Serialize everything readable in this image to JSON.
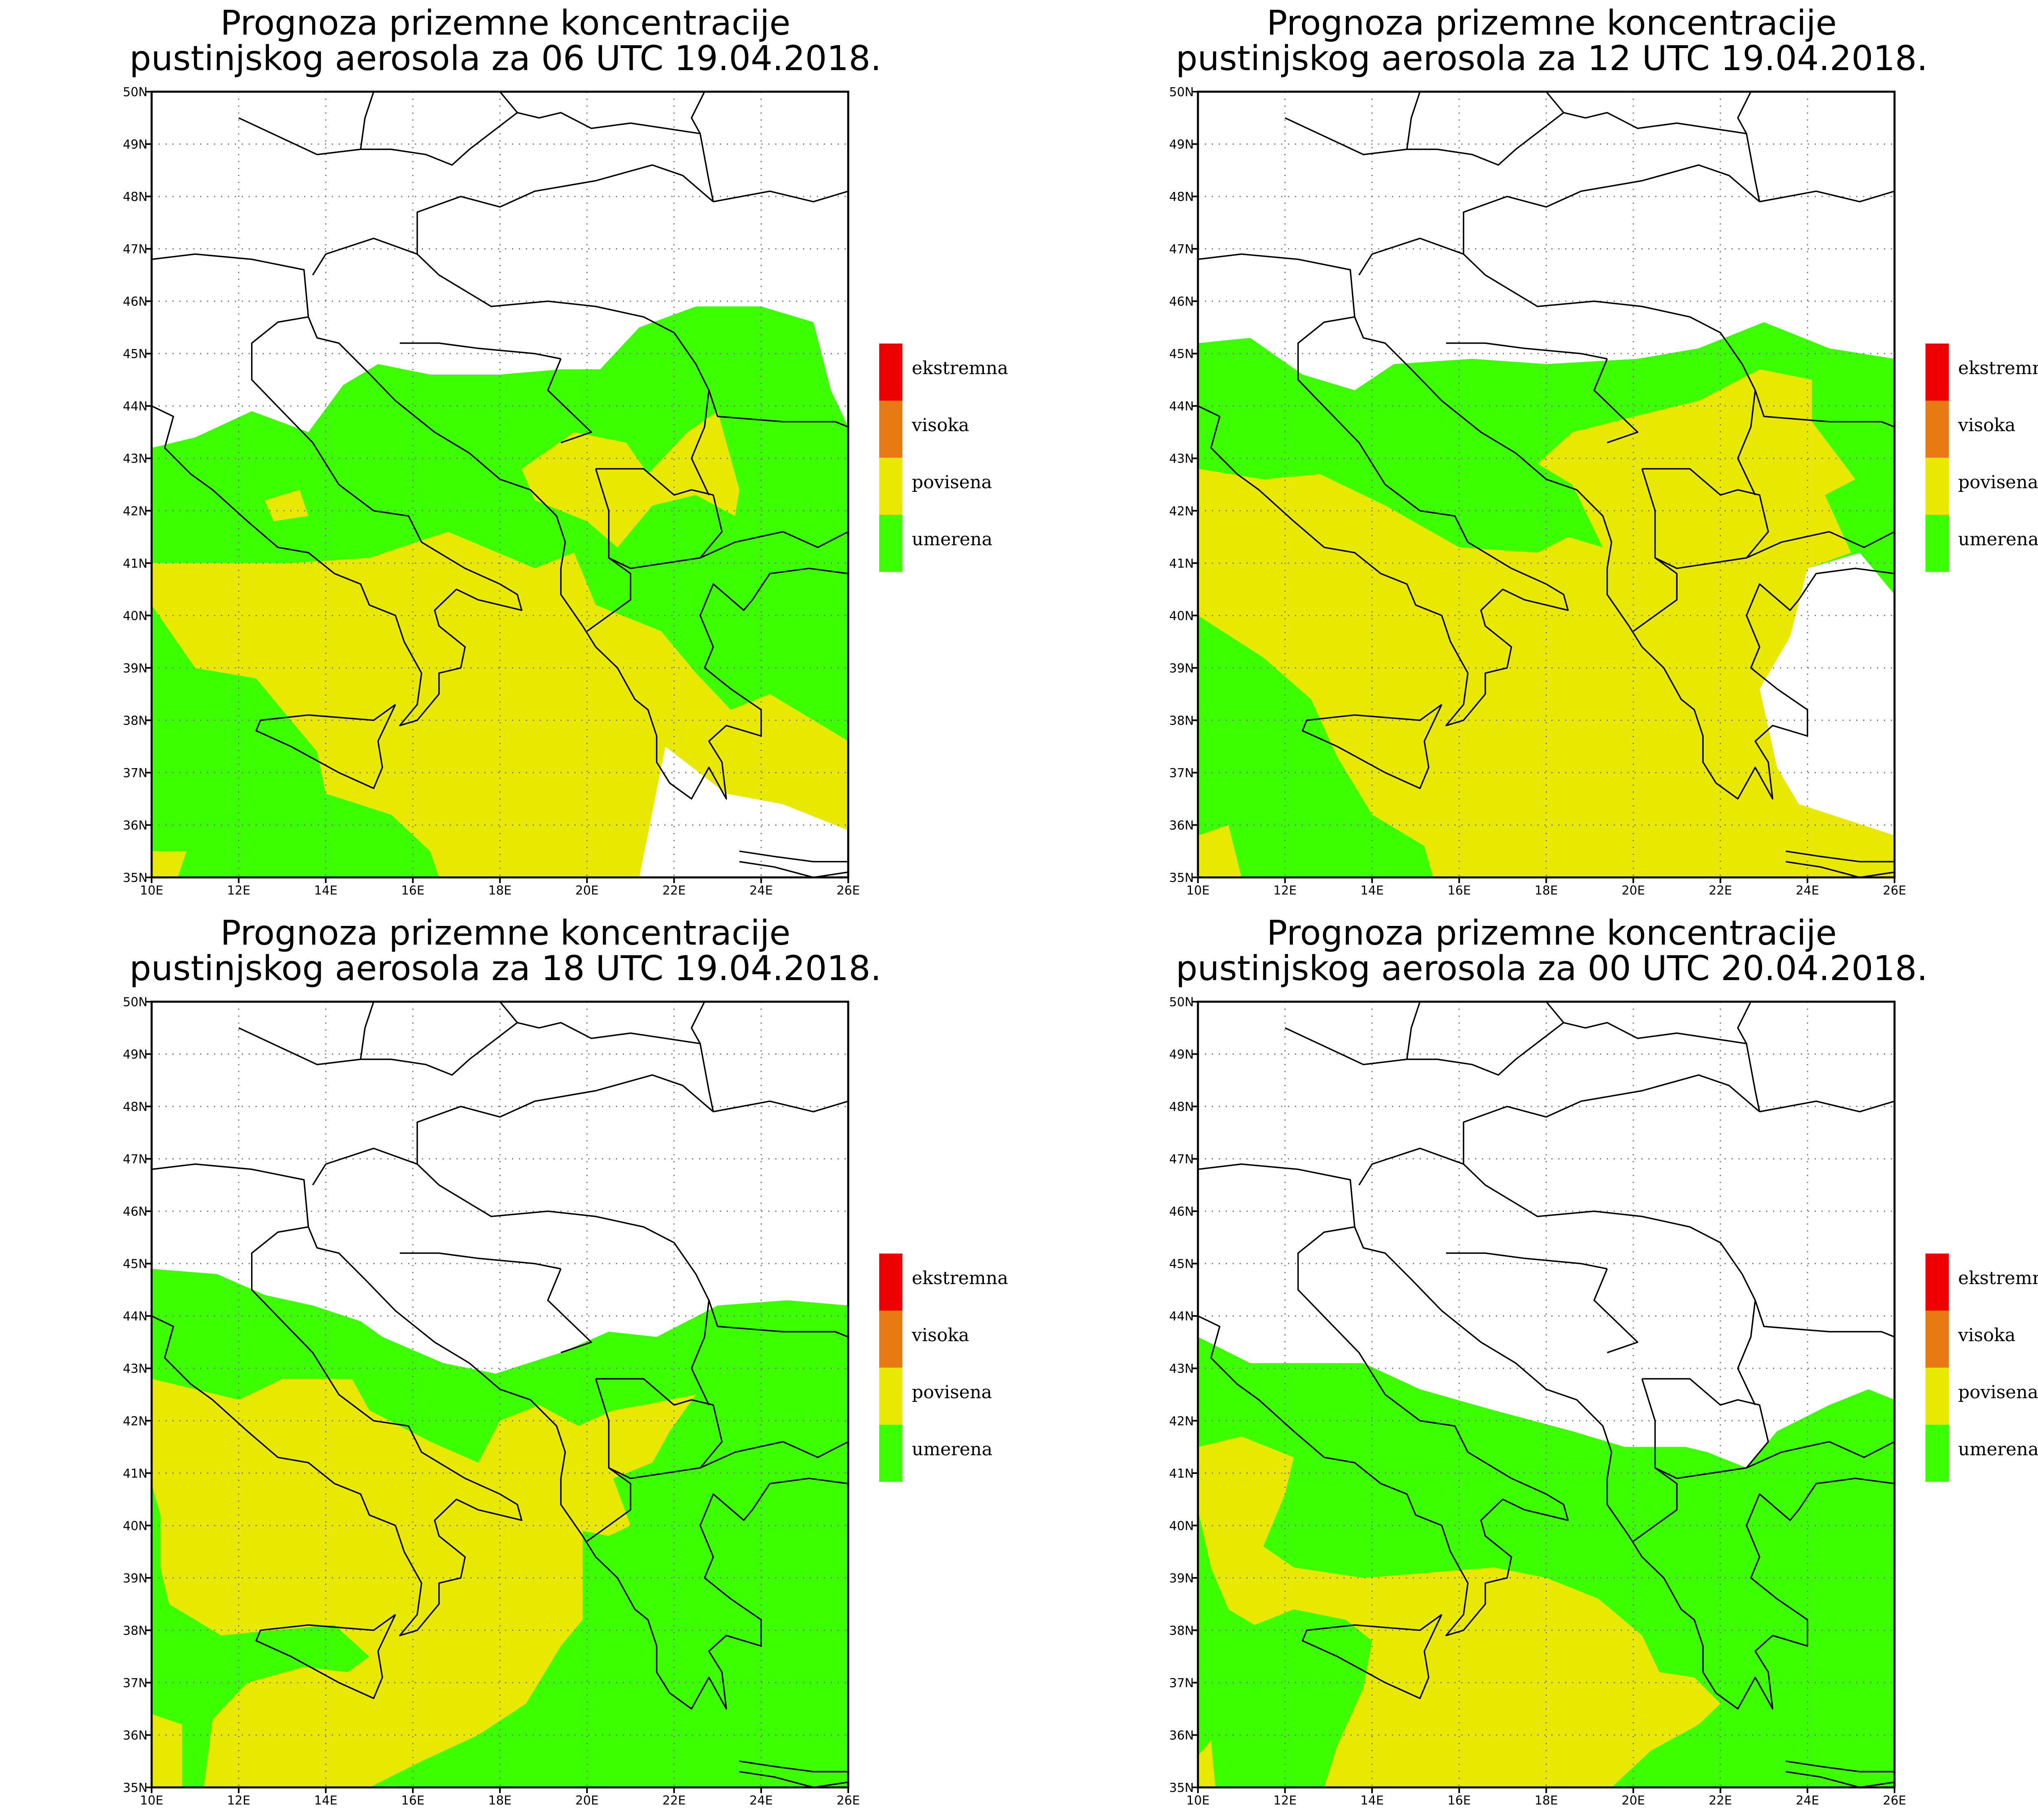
{
  "panels": [
    {
      "title_line1": "Prognoza prizemne koncentracije",
      "title_line2": "pustinjskog aerosola za 06 UTC 19.04.2018.",
      "green_regions": [
        [
          [
            10.0,
            43.2
          ],
          [
            11.0,
            43.4
          ],
          [
            12.3,
            43.9
          ],
          [
            13.6,
            43.5
          ],
          [
            14.4,
            44.4
          ],
          [
            15.2,
            44.8
          ],
          [
            16.4,
            44.6
          ],
          [
            18.0,
            44.6
          ],
          [
            19.4,
            44.7
          ],
          [
            20.3,
            44.7
          ],
          [
            21.2,
            45.5
          ],
          [
            22.5,
            45.9
          ],
          [
            24.0,
            45.9
          ],
          [
            25.2,
            45.6
          ],
          [
            25.6,
            44.3
          ],
          [
            26.0,
            43.6
          ],
          [
            26.0,
            37.6
          ],
          [
            24.2,
            38.5
          ],
          [
            23.3,
            38.2
          ],
          [
            22.5,
            38.9
          ],
          [
            21.7,
            39.7
          ],
          [
            20.2,
            40.2
          ],
          [
            19.7,
            41.2
          ],
          [
            18.8,
            40.9
          ],
          [
            16.8,
            41.6
          ],
          [
            15.0,
            41.1
          ],
          [
            13.2,
            41.0
          ],
          [
            10.0,
            41.0
          ]
        ],
        [
          [
            10.0,
            40.2
          ],
          [
            11.0,
            39.0
          ],
          [
            12.4,
            38.8
          ],
          [
            13.8,
            37.4
          ],
          [
            14.0,
            36.6
          ],
          [
            15.5,
            36.2
          ],
          [
            16.4,
            35.5
          ],
          [
            16.6,
            35.0
          ],
          [
            10.0,
            35.0
          ]
        ],
        [
          [
            21.8,
            37.5
          ],
          [
            23.2,
            36.6
          ],
          [
            24.5,
            36.4
          ],
          [
            26.0,
            35.9
          ],
          [
            26.0,
            37.6
          ],
          [
            24.2,
            38.5
          ],
          [
            23.3,
            38.2
          ],
          [
            22.6,
            37.9
          ]
        ]
      ],
      "yellow_regions": [
        [
          [
            10.0,
            41.0
          ],
          [
            13.2,
            41.0
          ],
          [
            15.0,
            41.1
          ],
          [
            16.8,
            41.6
          ],
          [
            18.8,
            40.9
          ],
          [
            19.7,
            41.2
          ],
          [
            20.2,
            40.2
          ],
          [
            21.7,
            39.7
          ],
          [
            22.5,
            38.9
          ],
          [
            23.3,
            38.2
          ],
          [
            24.2,
            38.5
          ],
          [
            26.0,
            37.6
          ],
          [
            26.0,
            35.9
          ],
          [
            24.5,
            36.4
          ],
          [
            23.2,
            36.6
          ],
          [
            21.8,
            37.5
          ],
          [
            21.2,
            35.0
          ],
          [
            16.6,
            35.0
          ],
          [
            16.4,
            35.5
          ],
          [
            15.5,
            36.2
          ],
          [
            14.0,
            36.6
          ],
          [
            13.8,
            37.4
          ],
          [
            12.4,
            38.8
          ],
          [
            11.0,
            39.0
          ],
          [
            10.0,
            40.2
          ]
        ],
        [
          [
            18.5,
            42.8
          ],
          [
            19.7,
            43.5
          ],
          [
            20.9,
            43.3
          ],
          [
            21.4,
            42.7
          ],
          [
            22.3,
            43.5
          ],
          [
            23.0,
            43.9
          ],
          [
            23.5,
            42.4
          ],
          [
            23.4,
            41.9
          ],
          [
            22.5,
            42.3
          ],
          [
            21.5,
            42.1
          ],
          [
            20.7,
            41.3
          ],
          [
            20.0,
            41.8
          ],
          [
            18.8,
            42.2
          ]
        ],
        [
          [
            10.0,
            35.5
          ],
          [
            10.8,
            35.5
          ],
          [
            10.6,
            35.0
          ],
          [
            10.0,
            35.0
          ]
        ],
        [
          [
            12.6,
            42.2
          ],
          [
            13.4,
            42.4
          ],
          [
            13.6,
            41.9
          ],
          [
            12.8,
            41.8
          ]
        ]
      ]
    },
    {
      "title_line1": "Prognoza prizemne koncentracije",
      "title_line2": "pustinjskog aerosola za 12 UTC 19.04.2018.",
      "green_regions": [
        [
          [
            10.0,
            45.2
          ],
          [
            11.2,
            45.3
          ],
          [
            12.4,
            44.6
          ],
          [
            13.6,
            44.3
          ],
          [
            14.5,
            44.8
          ],
          [
            16.3,
            44.9
          ],
          [
            18.0,
            44.8
          ],
          [
            20.1,
            44.9
          ],
          [
            21.5,
            45.1
          ],
          [
            23.0,
            45.6
          ],
          [
            24.5,
            45.1
          ],
          [
            26.0,
            44.9
          ],
          [
            26.0,
            40.4
          ],
          [
            25.2,
            41.2
          ],
          [
            24.0,
            40.9
          ],
          [
            23.6,
            39.6
          ],
          [
            22.9,
            38.6
          ],
          [
            23.3,
            37.1
          ],
          [
            23.8,
            36.4
          ],
          [
            26.0,
            35.8
          ],
          [
            26.0,
            35.0
          ],
          [
            10.0,
            35.0
          ]
        ]
      ],
      "yellow_regions": [
        [
          [
            10.0,
            42.8
          ],
          [
            11.5,
            42.6
          ],
          [
            12.8,
            42.7
          ],
          [
            14.3,
            42.1
          ],
          [
            16.0,
            41.3
          ],
          [
            17.8,
            41.2
          ],
          [
            18.5,
            41.5
          ],
          [
            19.3,
            41.3
          ],
          [
            18.6,
            42.5
          ],
          [
            17.8,
            42.9
          ],
          [
            18.6,
            43.5
          ],
          [
            20.5,
            43.9
          ],
          [
            21.5,
            44.1
          ],
          [
            22.9,
            44.7
          ],
          [
            24.1,
            44.5
          ],
          [
            24.1,
            43.7
          ],
          [
            25.1,
            42.6
          ],
          [
            24.4,
            42.3
          ],
          [
            25.0,
            41.2
          ],
          [
            24.0,
            40.9
          ],
          [
            23.6,
            39.6
          ],
          [
            22.9,
            38.6
          ],
          [
            23.3,
            37.1
          ],
          [
            23.8,
            36.4
          ],
          [
            26.0,
            35.8
          ],
          [
            26.0,
            35.0
          ],
          [
            15.4,
            35.0
          ],
          [
            15.2,
            35.6
          ],
          [
            14.0,
            36.2
          ],
          [
            13.2,
            37.3
          ],
          [
            12.6,
            38.4
          ],
          [
            11.5,
            39.2
          ],
          [
            10.0,
            40.0
          ]
        ],
        [
          [
            10.0,
            35.8
          ],
          [
            10.7,
            36.0
          ],
          [
            11.0,
            35.0
          ],
          [
            10.0,
            35.0
          ]
        ]
      ]
    },
    {
      "title_line1": "Prognoza prizemne koncentracije",
      "title_line2": "pustinjskog aerosola za 18 UTC 19.04.2018.",
      "green_regions": [
        [
          [
            10.0,
            44.9
          ],
          [
            11.5,
            44.8
          ],
          [
            12.6,
            44.4
          ],
          [
            13.7,
            44.2
          ],
          [
            14.8,
            43.9
          ],
          [
            15.3,
            43.6
          ],
          [
            16.7,
            43.1
          ],
          [
            17.9,
            42.9
          ],
          [
            19.4,
            43.3
          ],
          [
            20.5,
            43.7
          ],
          [
            21.6,
            43.6
          ],
          [
            23.0,
            44.2
          ],
          [
            24.6,
            44.3
          ],
          [
            26.0,
            44.2
          ],
          [
            26.0,
            35.0
          ],
          [
            10.0,
            35.0
          ]
        ]
      ],
      "yellow_regions": [
        [
          [
            10.0,
            42.8
          ],
          [
            11.0,
            42.6
          ],
          [
            12.0,
            42.4
          ],
          [
            13.0,
            42.8
          ],
          [
            14.6,
            42.8
          ],
          [
            15.0,
            42.2
          ],
          [
            16.4,
            41.6
          ],
          [
            17.5,
            41.2
          ],
          [
            18.0,
            42.0
          ],
          [
            18.9,
            42.3
          ],
          [
            19.8,
            41.9
          ],
          [
            20.6,
            42.2
          ],
          [
            21.3,
            42.3
          ],
          [
            22.5,
            42.5
          ],
          [
            21.9,
            41.8
          ],
          [
            21.5,
            41.2
          ],
          [
            20.6,
            40.9
          ],
          [
            21.0,
            40.0
          ],
          [
            20.5,
            39.8
          ],
          [
            19.9,
            39.9
          ],
          [
            19.9,
            38.2
          ],
          [
            19.4,
            37.7
          ],
          [
            18.6,
            36.6
          ],
          [
            17.5,
            36.0
          ],
          [
            16.2,
            35.5
          ],
          [
            15.0,
            35.0
          ],
          [
            11.2,
            35.0
          ],
          [
            11.4,
            36.3
          ],
          [
            12.2,
            37.0
          ],
          [
            13.5,
            37.3
          ],
          [
            14.5,
            37.2
          ],
          [
            15.0,
            37.5
          ],
          [
            14.2,
            38.1
          ],
          [
            12.8,
            38.0
          ],
          [
            11.6,
            37.9
          ],
          [
            10.4,
            38.5
          ],
          [
            10.2,
            39.2
          ],
          [
            10.2,
            40.2
          ],
          [
            10.0,
            40.8
          ]
        ],
        [
          [
            10.0,
            36.4
          ],
          [
            10.7,
            36.2
          ],
          [
            10.7,
            35.0
          ],
          [
            10.0,
            35.0
          ]
        ]
      ]
    },
    {
      "title_line1": "Prognoza prizemne koncentracije",
      "title_line2": "pustinjskog aerosola za 00 UTC 20.04.2018.",
      "green_regions": [
        [
          [
            10.0,
            43.6
          ],
          [
            11.2,
            43.1
          ],
          [
            12.4,
            43.1
          ],
          [
            13.8,
            43.1
          ],
          [
            15.1,
            42.6
          ],
          [
            16.8,
            42.2
          ],
          [
            18.6,
            41.8
          ],
          [
            19.8,
            41.5
          ],
          [
            21.2,
            41.5
          ],
          [
            21.7,
            41.4
          ],
          [
            22.6,
            41.1
          ],
          [
            23.3,
            41.8
          ],
          [
            24.5,
            42.3
          ],
          [
            25.4,
            42.6
          ],
          [
            26.0,
            42.4
          ],
          [
            26.0,
            35.0
          ],
          [
            10.0,
            35.0
          ]
        ]
      ],
      "yellow_regions": [
        [
          [
            10.0,
            41.5
          ],
          [
            11.0,
            41.7
          ],
          [
            12.2,
            41.3
          ],
          [
            12.0,
            40.6
          ],
          [
            11.5,
            39.6
          ],
          [
            12.2,
            39.2
          ],
          [
            13.8,
            39.0
          ],
          [
            15.3,
            39.1
          ],
          [
            16.8,
            39.2
          ],
          [
            18.0,
            39.0
          ],
          [
            19.2,
            38.6
          ],
          [
            20.2,
            37.9
          ],
          [
            20.6,
            37.2
          ],
          [
            21.4,
            37.1
          ],
          [
            22.0,
            36.6
          ],
          [
            21.5,
            36.2
          ],
          [
            20.4,
            35.7
          ],
          [
            19.5,
            35.0
          ],
          [
            12.9,
            35.0
          ],
          [
            13.2,
            35.8
          ],
          [
            13.8,
            36.9
          ],
          [
            14.0,
            37.8
          ],
          [
            13.4,
            38.2
          ],
          [
            12.2,
            38.4
          ],
          [
            11.3,
            38.1
          ],
          [
            10.7,
            38.4
          ],
          [
            10.3,
            39.2
          ],
          [
            10.0,
            40.3
          ]
        ],
        [
          [
            10.0,
            35.6
          ],
          [
            10.3,
            35.9
          ],
          [
            10.4,
            35.0
          ],
          [
            10.0,
            35.0
          ]
        ]
      ]
    }
  ],
  "axes": {
    "x_ticks": [
      "10E",
      "12E",
      "14E",
      "16E",
      "18E",
      "20E",
      "22E",
      "24E",
      "26E"
    ],
    "y_ticks": [
      "35N",
      "36N",
      "37N",
      "38N",
      "39N",
      "40N",
      "41N",
      "42N",
      "43N",
      "44N",
      "45N",
      "46N",
      "47N",
      "48N",
      "49N",
      "50N"
    ],
    "lon_range": [
      10,
      26
    ],
    "lat_range": [
      35,
      50
    ]
  },
  "legend": [
    {
      "label": "ekstremna",
      "color": "#ee0000"
    },
    {
      "label": "visoka",
      "color": "#e87a14"
    },
    {
      "label": "povisena",
      "color": "#e8e800"
    },
    {
      "label": "umerena",
      "color": "#3cff00"
    }
  ],
  "colors": {
    "umerena": "#3cff00",
    "povisena": "#e8e800",
    "background": "#ffffff",
    "border": "#000000"
  }
}
